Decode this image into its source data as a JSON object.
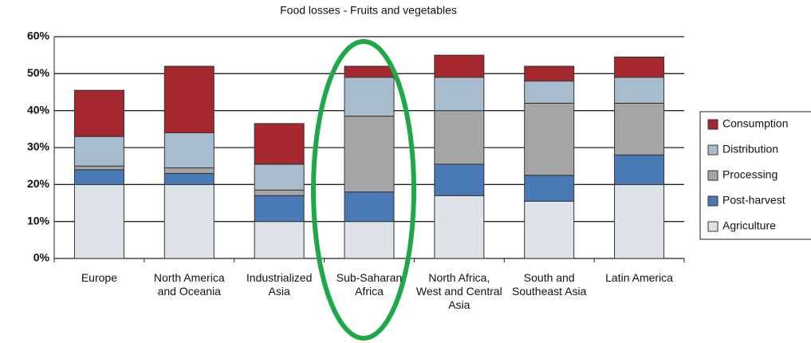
{
  "chart_data": {
    "type": "stacked_bar",
    "title": "Food losses - Fruits and vegetables",
    "categories": [
      "Europe",
      "North America and Oceania",
      "Industrialized Asia",
      "Sub-Saharan Africa",
      "North Africa, West and Central Asia",
      "South and Southeast Asia",
      "Latin America"
    ],
    "series": [
      {
        "name": "Agriculture",
        "color": "#dde3e8",
        "values": [
          20,
          20,
          10,
          10,
          17,
          15.5,
          20
        ]
      },
      {
        "name": "Post-harvest",
        "color": "#4a7ab5",
        "values": [
          4,
          3,
          7,
          8,
          8.5,
          7,
          8
        ]
      },
      {
        "name": "Processing",
        "color": "#a5a5a5",
        "values": [
          1,
          1.5,
          1.5,
          20.5,
          14.5,
          19.5,
          14
        ]
      },
      {
        "name": "Distribution",
        "color": "#a7bccd",
        "values": [
          8,
          9.5,
          7,
          10.5,
          9,
          6,
          7
        ]
      },
      {
        "name": "Consumption",
        "color": "#a4282e",
        "values": [
          12.5,
          18,
          11,
          3,
          6,
          4,
          5.5
        ]
      }
    ],
    "ylim": [
      0,
      60
    ],
    "yticks": [
      {
        "value": 0,
        "label": "0%"
      },
      {
        "value": 10,
        "label": "10%"
      },
      {
        "value": 20,
        "label": "20%"
      },
      {
        "value": 30,
        "label": "30%"
      },
      {
        "value": 40,
        "label": "40%"
      },
      {
        "value": 50,
        "label": "50%"
      },
      {
        "value": 60,
        "label": "60%"
      }
    ],
    "grid": true
  }
}
